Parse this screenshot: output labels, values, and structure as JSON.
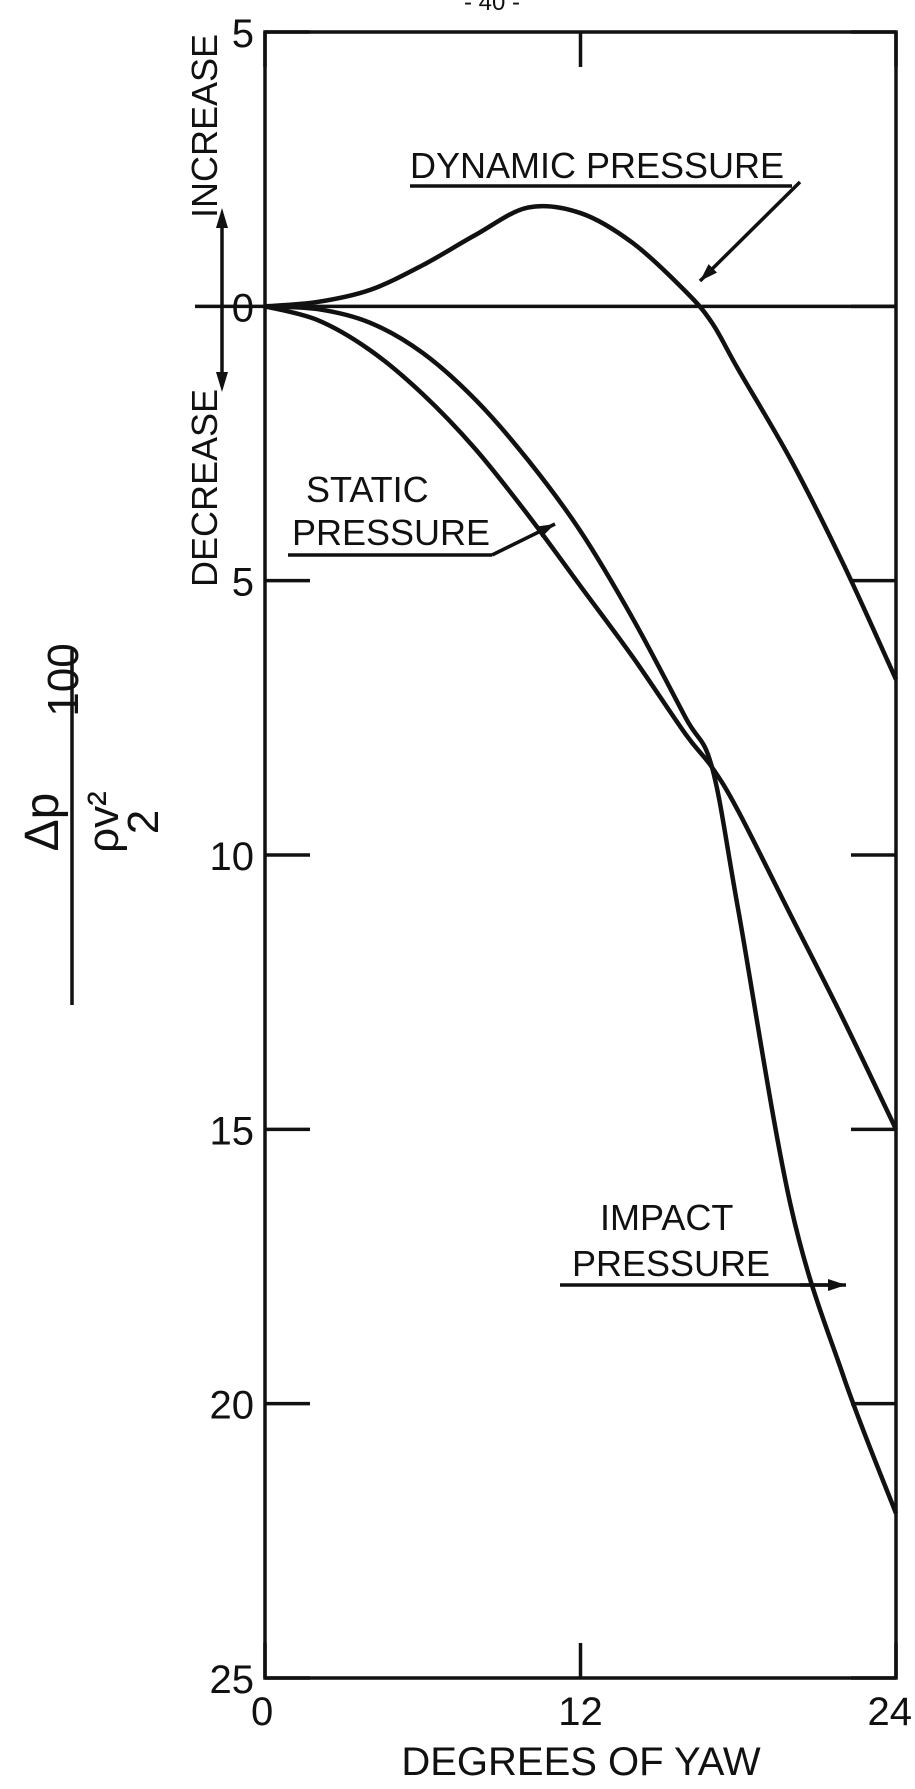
{
  "chart_data": {
    "type": "line",
    "page_header": "- 40 -",
    "xlabel": "DEGREES OF YAW",
    "ylabel": {
      "numerator": "Δp",
      "denominator": "ρv²",
      "denominator_divisor": "2",
      "factor": "100"
    },
    "increase_label": "INCREASE",
    "decrease_label": "DECREASE",
    "x": [
      0,
      2,
      4,
      6,
      8,
      10,
      12,
      14,
      16,
      17,
      18,
      20,
      22,
      24
    ],
    "series": [
      {
        "name": [
          "DYNAMIC PRESSURE"
        ],
        "color": "#111111",
        "values": [
          0,
          0.08,
          0.3,
          0.75,
          1.3,
          1.8,
          1.7,
          1.15,
          0.27,
          -0.3,
          -1.15,
          -2.8,
          -4.7,
          -6.8
        ]
      },
      {
        "name": [
          "STATIC",
          "PRESSURE"
        ],
        "color": "#111111",
        "values": [
          0,
          -0.25,
          -0.8,
          -1.6,
          -2.6,
          -3.8,
          -5.1,
          -6.4,
          -7.8,
          -8.4,
          -9.2,
          -11.1,
          -13.0,
          -15
        ]
      },
      {
        "name": [
          "IMPACT",
          "PRESSURE"
        ],
        "color": "#111111",
        "values": [
          0,
          -0.05,
          -0.3,
          -0.85,
          -1.7,
          -2.8,
          -4.1,
          -5.7,
          -7.5,
          -8.4,
          -11.0,
          -16.4,
          -19.5,
          -22
        ]
      }
    ],
    "xlim": [
      0,
      24
    ],
    "xticks": [
      0,
      12,
      24
    ],
    "ylim": [
      -25,
      5
    ],
    "yticks": [
      5,
      0,
      {
        "value": -5,
        "label": "5"
      },
      {
        "value": -10,
        "label": "10"
      },
      {
        "value": -15,
        "label": "15"
      },
      {
        "value": -20,
        "label": "20"
      },
      {
        "value": -25,
        "label": "25"
      }
    ],
    "grid": false
  }
}
